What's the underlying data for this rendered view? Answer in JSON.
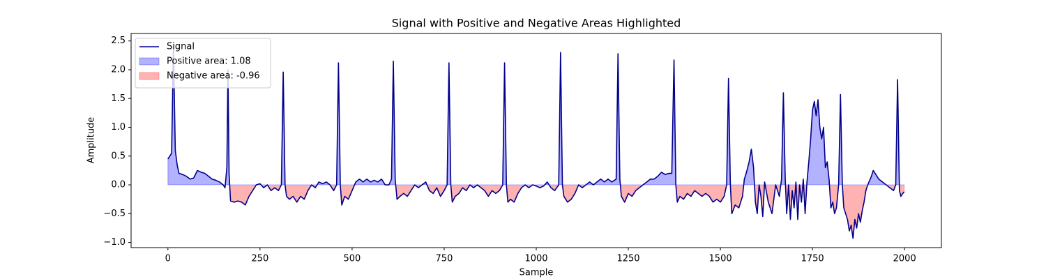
{
  "chart_data": {
    "type": "line",
    "title": "Signal with Positive and Negative Areas Highlighted",
    "xlabel": "Sample",
    "ylabel": "Amplitude",
    "xlim": [
      -100,
      2100
    ],
    "ylim": [
      -1.09,
      2.63
    ],
    "xticks": [
      0,
      250,
      500,
      750,
      1000,
      1250,
      1500,
      1750,
      2000
    ],
    "yticks": [
      {
        "value": -1.0,
        "label": "−1.0"
      },
      {
        "value": -0.5,
        "label": "−0.5"
      },
      {
        "value": 0.0,
        "label": "0.0"
      },
      0.5,
      {
        "value": 1.0,
        "label": "1.0"
      },
      1.5,
      {
        "value": 2.0,
        "label": "2.0"
      },
      2.5
    ],
    "legend": "upper left",
    "fills": [
      {
        "name": "Positive area: 1.08",
        "color": "#0000ff",
        "where": "positive"
      },
      {
        "name": "Negative area: -0.96",
        "color": "#ff0000",
        "where": "negative"
      }
    ],
    "x": [
      0,
      5,
      10,
      15,
      20,
      25,
      30,
      40,
      50,
      60,
      70,
      80,
      90,
      100,
      110,
      120,
      130,
      140,
      150,
      155,
      160,
      163,
      166,
      170,
      180,
      190,
      200,
      210,
      220,
      230,
      240,
      250,
      260,
      270,
      280,
      290,
      300,
      308,
      313,
      318,
      322,
      330,
      340,
      350,
      360,
      370,
      380,
      390,
      400,
      410,
      420,
      430,
      440,
      450,
      458,
      463,
      468,
      472,
      480,
      490,
      500,
      510,
      520,
      530,
      540,
      550,
      560,
      570,
      580,
      590,
      600,
      607,
      612,
      617,
      622,
      630,
      640,
      650,
      660,
      670,
      680,
      690,
      700,
      710,
      720,
      730,
      740,
      750,
      758,
      763,
      768,
      772,
      780,
      790,
      800,
      810,
      820,
      830,
      840,
      850,
      860,
      870,
      880,
      890,
      900,
      909,
      914,
      919,
      923,
      930,
      940,
      950,
      960,
      970,
      980,
      990,
      1000,
      1010,
      1020,
      1030,
      1040,
      1050,
      1061,
      1066,
      1071,
      1075,
      1085,
      1095,
      1105,
      1115,
      1125,
      1135,
      1145,
      1155,
      1165,
      1175,
      1185,
      1195,
      1205,
      1217,
      1222,
      1227,
      1231,
      1240,
      1250,
      1260,
      1270,
      1280,
      1290,
      1300,
      1310,
      1320,
      1330,
      1340,
      1350,
      1360,
      1368,
      1374,
      1379,
      1383,
      1390,
      1400,
      1410,
      1420,
      1430,
      1440,
      1450,
      1460,
      1470,
      1480,
      1490,
      1500,
      1510,
      1517,
      1522,
      1527,
      1531,
      1540,
      1550,
      1560,
      1565,
      1570,
      1578,
      1584,
      1590,
      1595,
      1600,
      1605,
      1610,
      1615,
      1620,
      1630,
      1640,
      1650,
      1660,
      1666,
      1671,
      1676,
      1680,
      1685,
      1690,
      1695,
      1700,
      1705,
      1710,
      1715,
      1720,
      1725,
      1730,
      1735,
      1740,
      1745,
      1750,
      1755,
      1760,
      1765,
      1770,
      1775,
      1780,
      1785,
      1790,
      1795,
      1800,
      1805,
      1810,
      1815,
      1821,
      1826,
      1831,
      1835,
      1845,
      1850,
      1855,
      1860,
      1865,
      1870,
      1875,
      1880,
      1885,
      1890,
      1895,
      1900,
      1910,
      1915,
      1920,
      1930,
      1940,
      1950,
      1960,
      1970,
      1976,
      1981,
      1986,
      1990,
      1995,
      1999
    ],
    "series": [
      {
        "name": "Signal",
        "color": "#00008b",
        "values": [
          0.45,
          0.5,
          0.55,
          2.4,
          0.6,
          0.35,
          0.2,
          0.18,
          0.15,
          0.1,
          0.12,
          0.25,
          0.22,
          0.2,
          0.15,
          0.1,
          0.08,
          0.05,
          0.0,
          -0.05,
          0.3,
          2.0,
          0.2,
          -0.28,
          -0.3,
          -0.28,
          -0.3,
          -0.35,
          -0.2,
          -0.1,
          0.0,
          0.02,
          -0.05,
          0.0,
          -0.1,
          -0.05,
          -0.1,
          0.0,
          1.96,
          0.0,
          -0.2,
          -0.25,
          -0.2,
          -0.3,
          -0.2,
          -0.25,
          -0.1,
          0.0,
          -0.05,
          0.05,
          0.02,
          0.05,
          0.0,
          -0.1,
          0.0,
          2.12,
          0.0,
          -0.35,
          -0.2,
          -0.25,
          -0.1,
          0.05,
          0.1,
          0.05,
          0.1,
          0.05,
          0.08,
          0.05,
          0.1,
          0.0,
          0.0,
          0.1,
          2.15,
          0.1,
          -0.25,
          -0.2,
          -0.15,
          -0.2,
          -0.1,
          0.0,
          -0.05,
          0.0,
          0.05,
          -0.1,
          -0.15,
          -0.05,
          -0.2,
          -0.1,
          0.0,
          2.12,
          0.0,
          -0.3,
          -0.2,
          -0.15,
          -0.05,
          -0.1,
          0.0,
          -0.05,
          0.0,
          -0.05,
          -0.1,
          -0.2,
          -0.1,
          -0.15,
          -0.1,
          0.0,
          2.12,
          0.0,
          -0.3,
          -0.25,
          -0.3,
          -0.15,
          -0.05,
          0.0,
          -0.05,
          0.0,
          -0.02,
          -0.05,
          -0.02,
          0.05,
          -0.05,
          -0.1,
          0.0,
          2.3,
          0.0,
          -0.2,
          -0.3,
          -0.25,
          -0.15,
          0.0,
          -0.05,
          0.0,
          0.05,
          0.0,
          0.05,
          0.1,
          0.05,
          0.1,
          0.05,
          0.1,
          2.28,
          0.1,
          -0.2,
          -0.3,
          -0.15,
          -0.2,
          -0.1,
          -0.05,
          0.0,
          0.05,
          0.1,
          0.1,
          0.15,
          0.22,
          0.18,
          0.2,
          0.2,
          2.17,
          0.0,
          -0.3,
          -0.2,
          -0.25,
          -0.15,
          -0.2,
          -0.1,
          -0.15,
          -0.2,
          -0.15,
          -0.2,
          -0.3,
          -0.25,
          -0.3,
          -0.2,
          0.0,
          1.85,
          0.0,
          -0.5,
          -0.35,
          -0.4,
          -0.2,
          0.1,
          0.2,
          0.4,
          0.62,
          0.3,
          -0.3,
          -0.5,
          0.0,
          -0.2,
          -0.55,
          0.05,
          -0.3,
          -0.5,
          0.0,
          -0.2,
          0.1,
          1.6,
          0.1,
          -0.5,
          0.0,
          -0.6,
          -0.1,
          -0.4,
          0.05,
          -0.6,
          0.0,
          -0.3,
          0.1,
          -0.5,
          0.05,
          0.4,
          0.8,
          1.3,
          1.45,
          1.2,
          1.48,
          1.0,
          0.8,
          1.0,
          0.3,
          0.4,
          0.1,
          -0.4,
          -0.3,
          -0.5,
          -0.4,
          0.0,
          1.57,
          0.0,
          -0.4,
          -0.6,
          -0.8,
          -0.7,
          -0.93,
          -0.6,
          -0.75,
          -0.5,
          -0.65,
          -0.45,
          -0.3,
          -0.1,
          0.0,
          0.15,
          0.25,
          0.2,
          0.1,
          0.05,
          0.0,
          -0.05,
          -0.1,
          0.0,
          1.83,
          -0.1,
          -0.2,
          -0.15,
          -0.12
        ]
      }
    ]
  }
}
